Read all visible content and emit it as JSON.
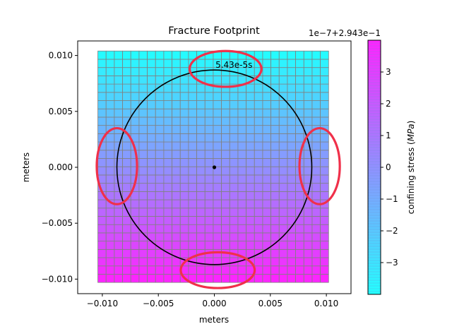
{
  "chart_data": {
    "type": "heatmap",
    "title": "Fracture Footprint",
    "xlabel": "meters",
    "ylabel": "meters",
    "xlim": [
      -0.0122,
      0.0122
    ],
    "ylim": [
      -0.0113,
      0.0113
    ],
    "x_ticks": [
      -0.01,
      -0.005,
      0.0,
      0.005,
      0.01
    ],
    "x_tick_labels": [
      "−0.010",
      "−0.005",
      "0.000",
      "0.005",
      "0.010"
    ],
    "y_ticks": [
      -0.01,
      -0.005,
      0.0,
      0.005,
      0.01
    ],
    "y_tick_labels": [
      "−0.010",
      "−0.005",
      "0.000",
      "0.005",
      "0.010"
    ],
    "grid_extent": {
      "x": [
        -0.0104,
        0.0102
      ],
      "y": [
        -0.0103,
        0.0104
      ]
    },
    "grid_cells": {
      "nx": 28,
      "ny": 28
    },
    "cell_color_bottom": "#ff22ff",
    "cell_color_top": "#22ffff",
    "cell_edge_color": "#808080",
    "fracture_front": {
      "center": [
        0.0,
        0.0
      ],
      "radius": 0.0087,
      "color": "#000000"
    },
    "injection_point": [
      0.0,
      0.0
    ],
    "time_annotation": {
      "text": "5.43e-5s",
      "x": 0.0001,
      "y": 0.0089
    },
    "highlight_ellipses": [
      {
        "cx": 0.001,
        "cy": 0.0088,
        "rx": 0.0032,
        "ry": 0.0016
      },
      {
        "cx": -0.0087,
        "cy": 0.0001,
        "rx": 0.0018,
        "ry": 0.0034
      },
      {
        "cx": 0.0094,
        "cy": 0.0001,
        "rx": 0.0018,
        "ry": 0.0034
      },
      {
        "cx": 0.0003,
        "cy": -0.0092,
        "rx": 0.0033,
        "ry": 0.0016
      }
    ],
    "highlight_color": "#f0304a",
    "colorbar": {
      "label": "confining stress (",
      "label_unit": "MPa",
      "label_close": ")",
      "offset_text": "1e−7+2.943e−1",
      "range": [
        -4,
        4
      ],
      "ticks": [
        -3,
        -2,
        -1,
        0,
        1,
        2,
        3
      ],
      "tick_labels": [
        "−3",
        "−2",
        "−1",
        "0",
        "1",
        "2",
        "3"
      ],
      "color_bottom": "#22ffff",
      "color_top": "#ff22ff"
    }
  }
}
